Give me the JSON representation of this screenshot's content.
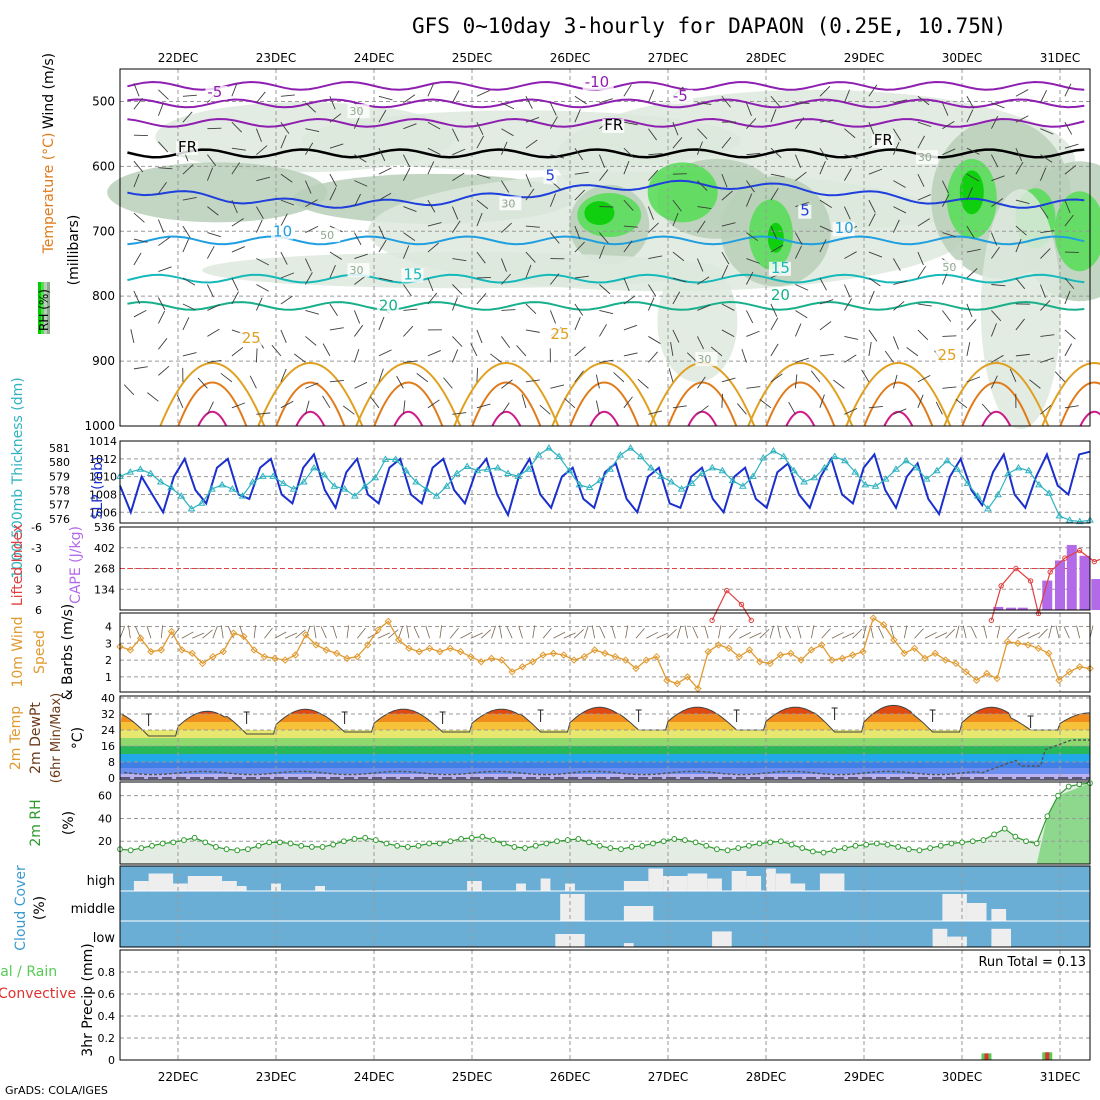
{
  "title": "GFS 0~10day 3-hourly for DAPAON (0.25E, 10.75N)",
  "credit": "GrADS: COLA/IGES",
  "dates": [
    "22DEC",
    "23DEC",
    "24DEC",
    "25DEC",
    "26DEC",
    "27DEC",
    "28DEC",
    "29DEC",
    "30DEC",
    "31DEC"
  ],
  "colors": {
    "rh_light": "#dde9dd",
    "rh_mid": "#b9cfb9",
    "rh_dark": "#8fa88f",
    "rh_green": "#55dd55",
    "rh_bright": "#00cc00",
    "temp_m10": "#8e1fb0",
    "temp_m5": "#8e1fb0",
    "temp_0": "#000000",
    "temp_5": "#1f3fdd",
    "temp_10": "#1f9fe0",
    "temp_15": "#16b9b9",
    "temp_20": "#18b08a",
    "temp_25": "#e0a020",
    "temp_30": "#e07a1a",
    "temp_35": "#d01a8a",
    "slp": "#1a2fcc",
    "thickness": "#2fb3c0",
    "cape": "#b36ae8",
    "lifted": "#e04040",
    "wind_speed": "#e09a30",
    "barbs": "#7a6652",
    "rh2m": "#2e9a2e",
    "cloud_bg": "#6aaed6",
    "cloud_fill": "#eeeeee",
    "precip_total": "#55cc55",
    "precip_conv": "#e03030"
  },
  "chart_data": [
    {
      "type": "contour",
      "panel": "upper-air",
      "ylabel_parts": [
        "Temperature (°C)",
        "Wind (m/s)"
      ],
      "yaxis_label": "(millibars)",
      "legend_label": "RH (%)",
      "y_ticks": [
        500,
        600,
        700,
        800,
        900,
        1000
      ],
      "ylim": [
        450,
        1000
      ],
      "contour_labels": [
        {
          "text": "-10",
          "day": 4.15,
          "p": 478,
          "color_key": "temp_m10"
        },
        {
          "text": "-5",
          "day": 0.3,
          "p": 493,
          "color_key": "temp_m5"
        },
        {
          "text": "-5",
          "day": 5.05,
          "p": 499,
          "color_key": "temp_m5"
        },
        {
          "text": "FR",
          "day": 4.35,
          "p": 544,
          "color_key": "temp_0"
        },
        {
          "text": "FR",
          "day": 0.0,
          "p": 578,
          "color_key": "temp_0"
        },
        {
          "text": "FR",
          "day": 7.1,
          "p": 567,
          "color_key": "temp_0"
        },
        {
          "text": "5",
          "day": 3.75,
          "p": 622,
          "color_key": "temp_5"
        },
        {
          "text": "5",
          "day": 6.35,
          "p": 676,
          "color_key": "temp_5"
        },
        {
          "text": "10",
          "day": 0.97,
          "p": 708,
          "color_key": "temp_10"
        },
        {
          "text": "10",
          "day": 6.7,
          "p": 703,
          "color_key": "temp_10"
        },
        {
          "text": "15",
          "day": 2.3,
          "p": 774,
          "color_key": "temp_15"
        },
        {
          "text": "15",
          "day": 6.05,
          "p": 764,
          "color_key": "temp_15"
        },
        {
          "text": "20",
          "day": 2.05,
          "p": 822,
          "color_key": "temp_20"
        },
        {
          "text": "20",
          "day": 6.05,
          "p": 806,
          "color_key": "temp_20"
        },
        {
          "text": "25",
          "day": 0.65,
          "p": 872,
          "color_key": "temp_25"
        },
        {
          "text": "25",
          "day": 3.8,
          "p": 866,
          "color_key": "temp_25"
        },
        {
          "text": "25",
          "day": 7.75,
          "p": 898,
          "color_key": "temp_25"
        },
        {
          "text": "30",
          "day": 1.75,
          "p": 521,
          "color_key": "rh_dark"
        },
        {
          "text": "30",
          "day": 7.55,
          "p": 592,
          "color_key": "rh_dark"
        },
        {
          "text": "30",
          "day": 3.3,
          "p": 663,
          "color_key": "rh_dark"
        },
        {
          "text": "50",
          "day": 1.45,
          "p": 712,
          "color_key": "rh_dark"
        },
        {
          "text": "30",
          "day": 1.75,
          "p": 766,
          "color_key": "rh_dark"
        },
        {
          "text": "50",
          "day": 7.8,
          "p": 761,
          "color_key": "rh_dark"
        },
        {
          "text": "30",
          "day": 5.3,
          "p": 903,
          "color_key": "rh_dark"
        }
      ]
    },
    {
      "type": "line",
      "panel": "slp-thickness",
      "ylabel_left": "1000-500mb Thickness (dm)",
      "ylabel_right": "SLP (mb)",
      "left_ticks": [
        576,
        577,
        578,
        579,
        580,
        581
      ],
      "right_ticks": [
        1006,
        1008,
        1010,
        1012,
        1014
      ],
      "slp_range": [
        1004.8,
        1014
      ],
      "thickness_range": [
        575.7,
        581.5
      ],
      "slp_values": [
        1009,
        1006,
        1010,
        1008,
        1006,
        1010,
        1012,
        1008.5,
        1007,
        1011,
        1012,
        1008,
        1007.5,
        1011,
        1012,
        1008,
        1007,
        1011,
        1012.5,
        1008.5,
        1006.5,
        1010.5,
        1012,
        1008,
        1007,
        1011,
        1012,
        1008,
        1007,
        1011,
        1012,
        1008.5,
        1007,
        1010.5,
        1012,
        1008,
        1005.7,
        1010,
        1012,
        1008,
        1006.5,
        1010,
        1011,
        1007.5,
        1006.5,
        1010.5,
        1011.5,
        1007.5,
        1006,
        1010,
        1011,
        1007,
        1006.5,
        1010,
        1011,
        1007.5,
        1006,
        1010,
        1011,
        1007.5,
        1006.5,
        1010.5,
        1011.5,
        1008,
        1006.5,
        1010,
        1012,
        1008,
        1007,
        1011,
        1012.5,
        1008.5,
        1006.5,
        1010,
        1011.5,
        1007.5,
        1005.8,
        1010,
        1012,
        1008.5,
        1006.8,
        1010.5,
        1012.5,
        1008,
        1006.5,
        1010,
        1012.5,
        1009,
        1008,
        1012.5,
        1012.8
      ],
      "thickness_values": [
        579,
        579.3,
        579.5,
        579.2,
        578.6,
        578.2,
        577.6,
        576.7,
        577.1,
        578.1,
        578.4,
        578.1,
        577.6,
        578.6,
        579,
        579,
        578.5,
        578.1,
        578.6,
        579.6,
        579.1,
        578.3,
        578.1,
        577.6,
        578.3,
        578.9,
        580.2,
        580.2,
        579.4,
        578.6,
        578.1,
        577.6,
        578.3,
        579.2,
        579.7,
        579.4,
        579.5,
        579.6,
        579.2,
        579,
        579.5,
        580.5,
        581,
        580.4,
        579.4,
        578.4,
        578.2,
        578.7,
        579.5,
        580.5,
        581,
        580.4,
        579.6,
        579,
        578.6,
        578.1,
        578.5,
        579.2,
        579.6,
        579.4,
        578.7,
        578.3,
        579,
        580.3,
        580.8,
        580.4,
        579.4,
        578.6,
        578.9,
        579.6,
        580.4,
        580.1,
        579.3,
        578.4,
        578.3,
        578.8,
        579.5,
        580.1,
        579.6,
        578.8,
        579.4,
        580.1,
        579.5,
        578.5,
        577.6,
        576.7,
        577.7,
        579.2,
        579.6,
        579.4,
        578.4,
        577.8,
        576.2,
        575.9,
        575.8,
        575.9
      ]
    },
    {
      "type": "bar",
      "panel": "cape-li",
      "ylabel_left": "Lifted Index",
      "ylabel_right": "CAPE (J/kg)",
      "left_ticks": [
        "-6",
        "-3",
        "0",
        "3",
        "6"
      ],
      "right_ticks": [
        134,
        268,
        402,
        536
      ],
      "cape_max": 536,
      "cape_bars": [
        {
          "day": 8.37,
          "v": 20
        },
        {
          "day": 8.5,
          "v": 15
        },
        {
          "day": 8.62,
          "v": 15
        },
        {
          "day": 8.87,
          "v": 190
        },
        {
          "day": 9.0,
          "v": 320
        },
        {
          "day": 9.12,
          "v": 420
        },
        {
          "day": 9.25,
          "v": 350
        },
        {
          "day": 9.37,
          "v": 200
        }
      ],
      "lifted_index_points": [
        {
          "day": 5.45,
          "li": 7.5
        },
        {
          "day": 5.6,
          "li": 3.2
        },
        {
          "day": 5.75,
          "li": 5.2
        },
        {
          "day": 5.85,
          "li": 7.5
        },
        {
          "day": 8.3,
          "li": 7.5
        },
        {
          "day": 8.4,
          "li": 2.5
        },
        {
          "day": 8.55,
          "li": 0.0
        },
        {
          "day": 8.7,
          "li": 1.8
        },
        {
          "day": 8.78,
          "li": 6.5
        },
        {
          "day": 8.9,
          "li": 0.5
        },
        {
          "day": 9.05,
          "li": -1.5
        },
        {
          "day": 9.2,
          "li": -2.6
        },
        {
          "day": 9.35,
          "li": -1.0
        },
        {
          "day": 9.5,
          "li": -1.8
        }
      ]
    },
    {
      "type": "line",
      "panel": "wind10m",
      "ylabel": "10m Wind Speed & Barbs (m/s)",
      "y_ticks": [
        1,
        2,
        3,
        4
      ],
      "ylim": [
        0.1,
        4.8
      ],
      "values": [
        2.8,
        2.6,
        3.3,
        2.5,
        2.6,
        3.7,
        2.6,
        2.4,
        1.8,
        2.2,
        2.5,
        3.6,
        3.4,
        2.6,
        2.2,
        2.1,
        2.0,
        2.3,
        3.5,
        2.9,
        2.6,
        2.4,
        2.1,
        2.2,
        2.9,
        3.8,
        4.3,
        3.2,
        2.7,
        2.5,
        2.7,
        2.5,
        2.7,
        2.5,
        2.2,
        1.9,
        2.1,
        2.0,
        1.3,
        1.6,
        1.9,
        2.3,
        2.4,
        2.3,
        2.0,
        2.2,
        2.6,
        2.4,
        2.2,
        2.0,
        1.5,
        2.0,
        2.2,
        0.8,
        0.6,
        1.0,
        0.3,
        2.5,
        2.9,
        2.7,
        2.2,
        2.6,
        1.9,
        1.8,
        2.3,
        2.4,
        2.0,
        2.6,
        2.9,
        2.0,
        2.1,
        2.3,
        2.5,
        4.5,
        4.1,
        3.2,
        2.4,
        2.7,
        2.1,
        2.4,
        2.0,
        1.8,
        1.3,
        0.8,
        1.2,
        0.9,
        3.1,
        3.0,
        2.9,
        2.7,
        2.4,
        0.8,
        1.3,
        1.6,
        1.5
      ]
    },
    {
      "type": "area",
      "panel": "temp2m",
      "ylabel": "2m Temp 2m DewPt (6hr Min/Max) (°C)",
      "y_ticks": [
        0,
        8,
        16,
        24,
        32,
        40
      ],
      "ylim": [
        -1,
        41
      ],
      "daily_min": [
        21,
        22,
        23,
        23,
        23,
        24,
        24,
        23,
        23,
        24
      ],
      "daily_max": [
        34,
        35,
        35,
        35,
        36,
        36,
        36,
        37,
        36,
        33
      ],
      "dewpoint_note_values": [
        2,
        3,
        2.5,
        2,
        2,
        3,
        4,
        6,
        2,
        3,
        18,
        20
      ]
    },
    {
      "type": "line",
      "panel": "rh2m",
      "ylabel": "2m RH (%)",
      "y_ticks": [
        20,
        40,
        60
      ],
      "ylim": [
        0,
        72
      ],
      "values": [
        13,
        12,
        14,
        16,
        18,
        19,
        21,
        23,
        19,
        15,
        13,
        12,
        13,
        16,
        19,
        19,
        18,
        16,
        15,
        15,
        17,
        20,
        22,
        23,
        21,
        18,
        16,
        15,
        16,
        18,
        18,
        20,
        22,
        23,
        24,
        21,
        18,
        15,
        14,
        16,
        18,
        20,
        21,
        22,
        19,
        16,
        14,
        13,
        15,
        16,
        18,
        20,
        22,
        21,
        19,
        16,
        13,
        12,
        14,
        16,
        18,
        19,
        20,
        17,
        14,
        11,
        10,
        12,
        14,
        16,
        17,
        18,
        17,
        15,
        13,
        12,
        14,
        16,
        18,
        19,
        20,
        21,
        26,
        31,
        24,
        20,
        18,
        42,
        60,
        68,
        70,
        71
      ]
    },
    {
      "type": "heatmap",
      "panel": "cloud",
      "ylabel": "Cloud Cover (%)",
      "levels": [
        "high",
        "middle",
        "low"
      ],
      "high_segments": [
        [
          0.05,
          0.2,
          0.4
        ],
        [
          0.2,
          0.45,
          0.7
        ],
        [
          0.45,
          0.6,
          0.3
        ],
        [
          0.6,
          0.95,
          0.6
        ],
        [
          0.95,
          1.1,
          0.4
        ],
        [
          1.1,
          1.2,
          0.2
        ],
        [
          1.45,
          1.55,
          0.3
        ],
        [
          1.9,
          2.0,
          0.2
        ],
        [
          3.45,
          3.6,
          0.4
        ],
        [
          3.95,
          4.05,
          0.3
        ],
        [
          4.2,
          4.3,
          0.5
        ],
        [
          4.45,
          4.55,
          0.3
        ],
        [
          5.05,
          5.3,
          0.4
        ],
        [
          5.3,
          5.45,
          0.9
        ],
        [
          5.45,
          5.7,
          0.6
        ],
        [
          5.7,
          5.9,
          0.7
        ],
        [
          5.9,
          6.05,
          0.5
        ],
        [
          6.15,
          6.3,
          0.8
        ],
        [
          6.3,
          6.45,
          0.6
        ],
        [
          6.5,
          6.6,
          0.9
        ],
        [
          6.6,
          6.75,
          0.7
        ],
        [
          6.75,
          6.9,
          0.3
        ],
        [
          7.05,
          7.3,
          0.7
        ]
      ],
      "middle_segments": [
        [
          4.4,
          4.65,
          0.9
        ],
        [
          5.05,
          5.35,
          0.5
        ],
        [
          8.3,
          8.55,
          0.9
        ],
        [
          8.55,
          8.75,
          0.6
        ],
        [
          8.8,
          8.95,
          0.4
        ]
      ],
      "low_segments": [
        [
          4.35,
          4.65,
          0.5
        ],
        [
          5.05,
          5.15,
          0.15
        ],
        [
          5.95,
          6.15,
          0.6
        ],
        [
          8.2,
          8.35,
          0.7
        ],
        [
          8.35,
          8.55,
          0.4
        ],
        [
          8.8,
          9.0,
          0.7
        ]
      ]
    },
    {
      "type": "bar",
      "panel": "precip",
      "ylabel": "3hr Precip (mm)",
      "legend_total": "Total / Rain",
      "legend_conv": "Convective",
      "run_total_label": "Run Total = 0.13",
      "y_ticks": [
        0,
        0.2,
        0.4,
        0.6,
        0.8
      ],
      "ylim": [
        0,
        1.0
      ],
      "bars": [
        {
          "day": 8.25,
          "total": 0.06,
          "conv": 0.06
        },
        {
          "day": 8.87,
          "total": 0.07,
          "conv": 0.07
        }
      ]
    }
  ]
}
